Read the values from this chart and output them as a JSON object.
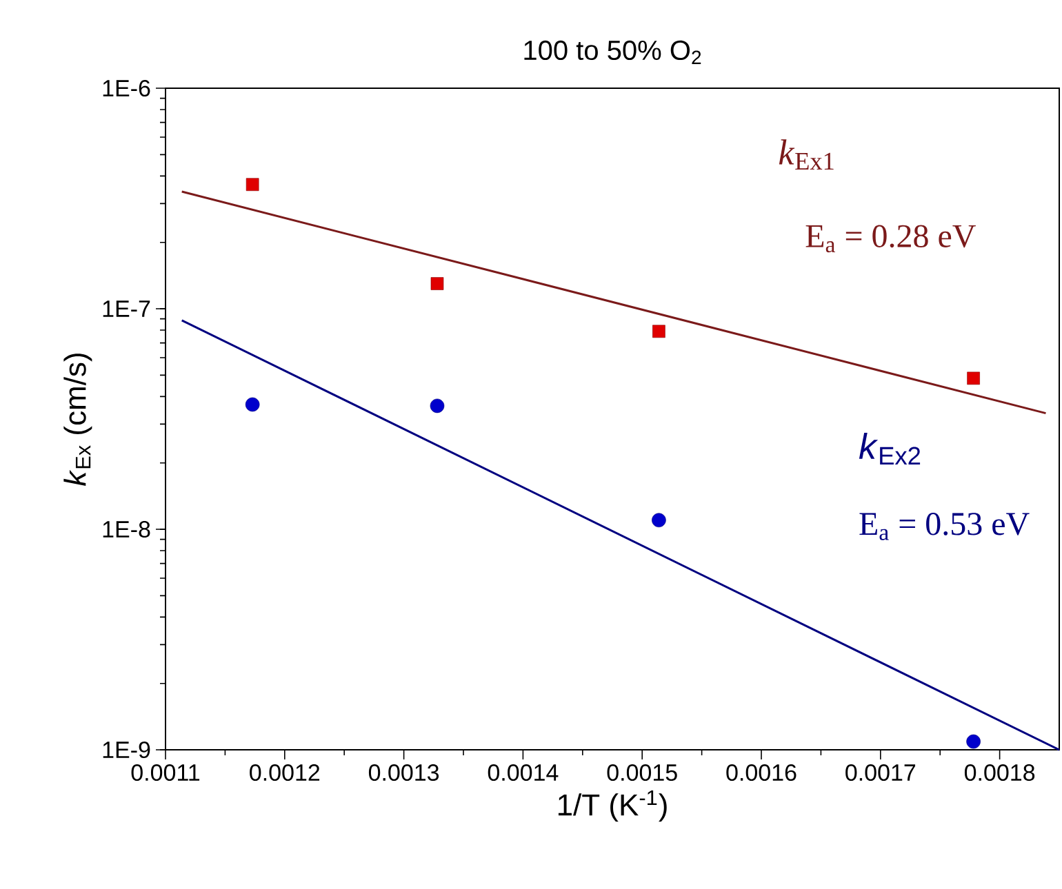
{
  "chart_data": {
    "type": "scatter",
    "title": "100 to 50% O$_{2}$",
    "xlabel": "1/T (K$^{-1}$)",
    "ylabel": "*k*$_{Ex}$ (cm/s)",
    "log": "y",
    "grid": false,
    "xlim": [
      0.0011,
      0.00185
    ],
    "xticks": [
      0.0011,
      0.0012,
      0.0013,
      0.0014,
      0.0015,
      0.0016,
      0.0017,
      0.0018
    ],
    "ylim": [
      1e-09,
      1e-06
    ],
    "yticks": [
      {
        "value": 1e-09,
        "label": "1E-9"
      },
      {
        "value": 1e-08,
        "label": "1E-8"
      },
      {
        "value": 1e-07,
        "label": "1E-7"
      },
      {
        "value": 1e-06,
        "label": "1E-6"
      }
    ],
    "series": [
      {
        "name": "*k*$_{Ex1}$",
        "marker": "square",
        "color": "#e00000",
        "x": [
          0.001173,
          0.001328,
          0.001514,
          0.001778
        ],
        "values": [
          3.66e-07,
          1.3e-07,
          7.9e-08,
          4.84e-08
        ]
      },
      {
        "type": "line",
        "marker": "none",
        "color": "#7b1a1a",
        "x": [
          0.0011137,
          0.0018387
        ],
        "values": [
          3.4e-07,
          3.36e-08
        ]
      },
      {
        "name": "*k*$_{Ex2}$",
        "marker": "circle",
        "color": "#0000cc",
        "x": [
          0.001173,
          0.001328,
          0.001514,
          0.001778
        ],
        "values": [
          3.68e-08,
          3.63e-08,
          1.1e-08,
          1.09e-09
        ]
      },
      {
        "type": "line",
        "marker": "none",
        "color": "#000080",
        "x": [
          0.0011137,
          0.00185
        ],
        "values": [
          8.86e-08,
          1e-09
        ]
      }
    ],
    "annotations": [
      "E$_{a}$ = 0.28 eV",
      "E$_{a}$ = 0.53 eV"
    ]
  }
}
